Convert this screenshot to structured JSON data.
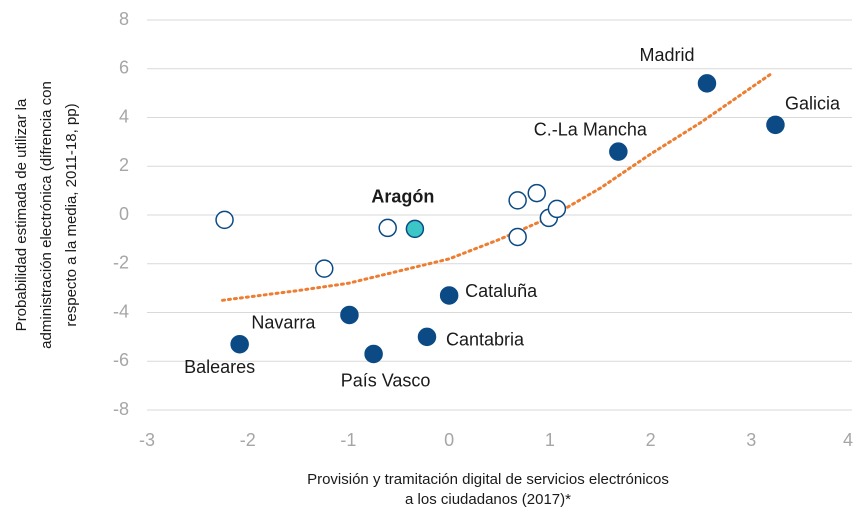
{
  "chart_data": {
    "type": "scatter",
    "x_label": [
      "Provisión  y tramitación digital de servicios electrónicos",
      "a los ciudadanos  (2017)*"
    ],
    "y_label": [
      "Probabilidad  estimada de utilizar la",
      "administración electrónica (difrencia con",
      "respecto a la media, 2011-18, pp)"
    ],
    "xlim": [
      -3,
      4
    ],
    "xticks": [
      -3,
      -2,
      -1,
      0,
      1,
      2,
      3,
      4
    ],
    "ylim": [
      -8,
      8
    ],
    "yticks": [
      -8,
      -6,
      -4,
      -2,
      0,
      2,
      4,
      6,
      8
    ],
    "grid": true,
    "series": [
      {
        "color": "#0b4a85",
        "stroke": "#0b4a85",
        "x": [
          2.56,
          3.24,
          1.68,
          0.0,
          -0.22,
          -0.99,
          -0.75,
          -2.08
        ],
        "values": [
          5.4,
          3.7,
          2.6,
          -3.3,
          -5.0,
          -4.1,
          -5.7,
          -5.3
        ],
        "labels": [
          "Madrid",
          "Galicia",
          "C.-La Mancha",
          "Cataluña",
          "Cantabria",
          "Navarra",
          "País Vasco",
          "Baleares"
        ]
      },
      {
        "color": "#ffffff",
        "stroke": "#0b4a85",
        "x": [
          -2.23,
          -1.24,
          -0.61,
          0.68,
          0.68,
          0.87,
          0.99,
          1.07
        ],
        "values": [
          -0.2,
          -2.2,
          -0.53,
          0.6,
          -0.9,
          0.9,
          -0.12,
          0.25
        ]
      },
      {
        "color": "#3cc6c6",
        "stroke": "#0b4a85",
        "bold": true,
        "x": [
          -0.34
        ],
        "values": [
          -0.57
        ],
        "labels": [
          "Aragón"
        ]
      }
    ],
    "trend": {
      "color": "#ed7d31",
      "x": [
        -2.25,
        -1.5,
        -1,
        -0.5,
        0,
        0.5,
        1,
        1.5,
        2,
        2.5,
        3.2
      ],
      "values": [
        -3.5,
        -3.1,
        -2.8,
        -2.3,
        -1.8,
        -1.0,
        -0.1,
        1.1,
        2.5,
        3.8,
        5.8
      ]
    }
  }
}
